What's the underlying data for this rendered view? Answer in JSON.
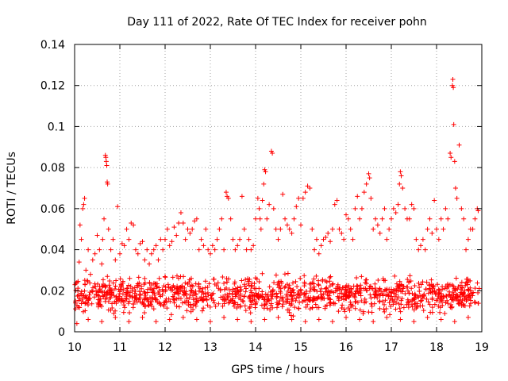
{
  "chart_data": {
    "type": "scatter",
    "title": "Day 111 of 2022, Rate Of TEC Index for receiver pohn",
    "xlabel": "GPS time / hours",
    "ylabel": "ROTI / TECUs",
    "xlim": [
      10,
      19
    ],
    "ylim": [
      0,
      0.14
    ],
    "x_ticks": [
      10,
      11,
      12,
      13,
      14,
      15,
      16,
      17,
      18,
      19
    ],
    "x_tick_labels": [
      "10",
      "11",
      "12",
      "13",
      "14",
      "15",
      "16",
      "17",
      "18",
      "19"
    ],
    "y_ticks": [
      0,
      0.02,
      0.04,
      0.06,
      0.08,
      0.1,
      0.12,
      0.14
    ],
    "y_tick_labels": [
      "0",
      "0.02",
      "0.04",
      "0.06",
      "0.08",
      "0.1",
      "0.12",
      "0.14"
    ],
    "grid": true,
    "marker": "+",
    "marker_color": "#ff0000",
    "series": [
      {
        "name": "ROTI",
        "points": [
          [
            10.02,
            0.015
          ],
          [
            10.05,
            0.024
          ],
          [
            10.08,
            0.012
          ],
          [
            10.1,
            0.034
          ],
          [
            10.12,
            0.052
          ],
          [
            10.15,
            0.045
          ],
          [
            10.18,
            0.06
          ],
          [
            10.2,
            0.062
          ],
          [
            10.22,
            0.065
          ],
          [
            10.25,
            0.03
          ],
          [
            10.28,
            0.025
          ],
          [
            10.3,
            0.04
          ],
          [
            10.35,
            0.028
          ],
          [
            10.4,
            0.035
          ],
          [
            10.45,
            0.038
          ],
          [
            10.5,
            0.047
          ],
          [
            10.55,
            0.04
          ],
          [
            10.6,
            0.033
          ],
          [
            10.62,
            0.045
          ],
          [
            10.65,
            0.055
          ],
          [
            10.68,
            0.086
          ],
          [
            10.69,
            0.085
          ],
          [
            10.7,
            0.083
          ],
          [
            10.71,
            0.081
          ],
          [
            10.72,
            0.073
          ],
          [
            10.73,
            0.072
          ],
          [
            10.75,
            0.05
          ],
          [
            10.8,
            0.04
          ],
          [
            10.85,
            0.045
          ],
          [
            10.9,
            0.035
          ],
          [
            10.95,
            0.061
          ],
          [
            11.0,
            0.038
          ],
          [
            11.05,
            0.043
          ],
          [
            11.1,
            0.042
          ],
          [
            11.15,
            0.05
          ],
          [
            11.2,
            0.045
          ],
          [
            11.25,
            0.053
          ],
          [
            11.3,
            0.052
          ],
          [
            11.35,
            0.04
          ],
          [
            11.4,
            0.038
          ],
          [
            11.45,
            0.043
          ],
          [
            11.5,
            0.044
          ],
          [
            11.55,
            0.035
          ],
          [
            11.6,
            0.04
          ],
          [
            11.65,
            0.033
          ],
          [
            11.7,
            0.038
          ],
          [
            11.75,
            0.04
          ],
          [
            11.8,
            0.042
          ],
          [
            11.85,
            0.035
          ],
          [
            11.9,
            0.045
          ],
          [
            11.95,
            0.04
          ],
          [
            12.0,
            0.045
          ],
          [
            12.05,
            0.05
          ],
          [
            12.1,
            0.042
          ],
          [
            12.15,
            0.044
          ],
          [
            12.2,
            0.051
          ],
          [
            12.25,
            0.047
          ],
          [
            12.3,
            0.053
          ],
          [
            12.35,
            0.058
          ],
          [
            12.4,
            0.053
          ],
          [
            12.45,
            0.045
          ],
          [
            12.5,
            0.05
          ],
          [
            12.55,
            0.048
          ],
          [
            12.6,
            0.05
          ],
          [
            12.65,
            0.054
          ],
          [
            12.7,
            0.055
          ],
          [
            12.75,
            0.04
          ],
          [
            12.8,
            0.045
          ],
          [
            12.85,
            0.042
          ],
          [
            12.9,
            0.05
          ],
          [
            12.95,
            0.04
          ],
          [
            13.0,
            0.038
          ],
          [
            13.05,
            0.042
          ],
          [
            13.1,
            0.04
          ],
          [
            13.15,
            0.045
          ],
          [
            13.2,
            0.05
          ],
          [
            13.25,
            0.055
          ],
          [
            13.3,
            0.04
          ],
          [
            13.35,
            0.068
          ],
          [
            13.37,
            0.066
          ],
          [
            13.4,
            0.065
          ],
          [
            13.45,
            0.055
          ],
          [
            13.5,
            0.045
          ],
          [
            13.55,
            0.04
          ],
          [
            13.6,
            0.042
          ],
          [
            13.65,
            0.045
          ],
          [
            13.7,
            0.066
          ],
          [
            13.75,
            0.05
          ],
          [
            13.8,
            0.04
          ],
          [
            13.85,
            0.045
          ],
          [
            13.9,
            0.04
          ],
          [
            13.95,
            0.042
          ],
          [
            14.0,
            0.055
          ],
          [
            14.05,
            0.065
          ],
          [
            14.08,
            0.06
          ],
          [
            14.1,
            0.055
          ],
          [
            14.12,
            0.05
          ],
          [
            14.15,
            0.064
          ],
          [
            14.18,
            0.072
          ],
          [
            14.2,
            0.079
          ],
          [
            14.22,
            0.078
          ],
          [
            14.25,
            0.055
          ],
          [
            14.3,
            0.062
          ],
          [
            14.35,
            0.088
          ],
          [
            14.37,
            0.087
          ],
          [
            14.4,
            0.06
          ],
          [
            14.45,
            0.05
          ],
          [
            14.5,
            0.045
          ],
          [
            14.55,
            0.05
          ],
          [
            14.6,
            0.067
          ],
          [
            14.65,
            0.055
          ],
          [
            14.7,
            0.052
          ],
          [
            14.75,
            0.05
          ],
          [
            14.8,
            0.048
          ],
          [
            14.85,
            0.055
          ],
          [
            14.9,
            0.061
          ],
          [
            14.95,
            0.065
          ],
          [
            15.0,
            0.052
          ],
          [
            15.05,
            0.065
          ],
          [
            15.1,
            0.068
          ],
          [
            15.15,
            0.071
          ],
          [
            15.2,
            0.07
          ],
          [
            15.25,
            0.05
          ],
          [
            15.3,
            0.04
          ],
          [
            15.35,
            0.045
          ],
          [
            15.4,
            0.038
          ],
          [
            15.45,
            0.042
          ],
          [
            15.5,
            0.045
          ],
          [
            15.55,
            0.046
          ],
          [
            15.6,
            0.048
          ],
          [
            15.65,
            0.044
          ],
          [
            15.7,
            0.05
          ],
          [
            15.75,
            0.062
          ],
          [
            15.8,
            0.064
          ],
          [
            15.85,
            0.05
          ],
          [
            15.9,
            0.048
          ],
          [
            15.95,
            0.045
          ],
          [
            16.0,
            0.057
          ],
          [
            16.05,
            0.055
          ],
          [
            16.1,
            0.05
          ],
          [
            16.15,
            0.045
          ],
          [
            16.2,
            0.06
          ],
          [
            16.25,
            0.066
          ],
          [
            16.3,
            0.055
          ],
          [
            16.35,
            0.06
          ],
          [
            16.4,
            0.068
          ],
          [
            16.45,
            0.072
          ],
          [
            16.5,
            0.077
          ],
          [
            16.52,
            0.075
          ],
          [
            16.55,
            0.065
          ],
          [
            16.6,
            0.05
          ],
          [
            16.65,
            0.055
          ],
          [
            16.7,
            0.052
          ],
          [
            16.75,
            0.048
          ],
          [
            16.8,
            0.055
          ],
          [
            16.85,
            0.06
          ],
          [
            16.9,
            0.045
          ],
          [
            16.95,
            0.05
          ],
          [
            17.0,
            0.055
          ],
          [
            17.05,
            0.06
          ],
          [
            17.1,
            0.058
          ],
          [
            17.15,
            0.062
          ],
          [
            17.18,
            0.072
          ],
          [
            17.2,
            0.078
          ],
          [
            17.22,
            0.076
          ],
          [
            17.25,
            0.07
          ],
          [
            17.3,
            0.06
          ],
          [
            17.35,
            0.055
          ],
          [
            17.4,
            0.055
          ],
          [
            17.45,
            0.062
          ],
          [
            17.5,
            0.06
          ],
          [
            17.55,
            0.045
          ],
          [
            17.6,
            0.04
          ],
          [
            17.65,
            0.042
          ],
          [
            17.7,
            0.045
          ],
          [
            17.75,
            0.04
          ],
          [
            17.8,
            0.05
          ],
          [
            17.85,
            0.055
          ],
          [
            17.9,
            0.048
          ],
          [
            17.95,
            0.064
          ],
          [
            18.0,
            0.05
          ],
          [
            18.05,
            0.045
          ],
          [
            18.1,
            0.055
          ],
          [
            18.15,
            0.05
          ],
          [
            18.2,
            0.06
          ],
          [
            18.25,
            0.055
          ],
          [
            18.3,
            0.087
          ],
          [
            18.32,
            0.085
          ],
          [
            18.35,
            0.12
          ],
          [
            18.36,
            0.123
          ],
          [
            18.37,
            0.119
          ],
          [
            18.38,
            0.101
          ],
          [
            18.4,
            0.083
          ],
          [
            18.42,
            0.07
          ],
          [
            18.45,
            0.065
          ],
          [
            18.5,
            0.091
          ],
          [
            18.55,
            0.06
          ],
          [
            18.6,
            0.055
          ],
          [
            18.65,
            0.04
          ],
          [
            18.7,
            0.045
          ],
          [
            18.75,
            0.05
          ],
          [
            18.8,
            0.05
          ],
          [
            18.85,
            0.055
          ],
          [
            18.9,
            0.06
          ],
          [
            18.92,
            0.059
          ],
          [
            10.05,
            0.004
          ],
          [
            10.3,
            0.006
          ],
          [
            10.6,
            0.005
          ],
          [
            10.9,
            0.007
          ],
          [
            11.2,
            0.005
          ],
          [
            11.5,
            0.007
          ],
          [
            11.8,
            0.005
          ],
          [
            12.1,
            0.006
          ],
          [
            12.4,
            0.007
          ],
          [
            12.7,
            0.006
          ],
          [
            13.0,
            0.005
          ],
          [
            13.3,
            0.007
          ],
          [
            13.6,
            0.006
          ],
          [
            13.9,
            0.005
          ],
          [
            14.2,
            0.006
          ],
          [
            14.5,
            0.007
          ],
          [
            14.8,
            0.006
          ],
          [
            15.1,
            0.005
          ],
          [
            15.4,
            0.006
          ],
          [
            15.7,
            0.005
          ],
          [
            16.0,
            0.007
          ],
          [
            16.3,
            0.006
          ],
          [
            16.6,
            0.005
          ],
          [
            16.9,
            0.007
          ],
          [
            17.2,
            0.006
          ],
          [
            17.5,
            0.005
          ],
          [
            17.8,
            0.007
          ],
          [
            18.1,
            0.006
          ],
          [
            18.4,
            0.005
          ],
          [
            18.7,
            0.007
          ]
        ],
        "dense_band": {
          "x_range": [
            10,
            18.95
          ],
          "y_center": 0.018,
          "y_spread": 0.012,
          "count": 1200
        }
      }
    ]
  }
}
